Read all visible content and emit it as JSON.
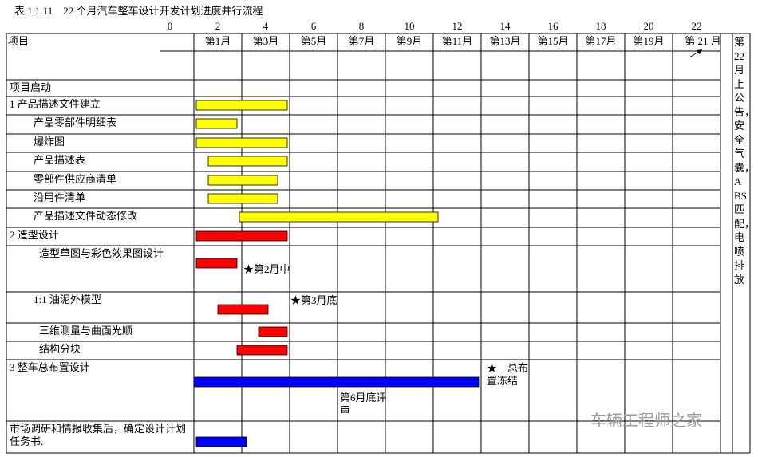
{
  "chart_data": {
    "type": "gantt",
    "title": "表 1.1.11　22 个月汽车整车设计开发计划进度并行流程",
    "header_label": "项目",
    "xlim": [
      0,
      22
    ],
    "xticks": [
      0,
      2,
      4,
      6,
      8,
      10,
      12,
      14,
      16,
      18,
      20,
      22
    ],
    "column_headers": [
      "第1月",
      "第3月",
      "第5月",
      "第7月",
      "第9月",
      "第11月",
      "第13月",
      "第15月",
      "第17月",
      "第19月",
      "第 21 月"
    ],
    "last_column": "第22月上公告，安全气囊，ABS匹配，电喷排放",
    "tasks": [
      {
        "label": "项目启动"
      },
      {
        "label": "1  产品描述文件建立",
        "start": 0.1,
        "end": 3.9,
        "color": "#ffff00"
      },
      {
        "label": "产品零部件明细表",
        "start": 0.1,
        "end": 1.8,
        "color": "#ffff00"
      },
      {
        "label": "爆炸图",
        "start": 0.1,
        "end": 3.9,
        "color": "#ffff00"
      },
      {
        "label": "产品描述表",
        "start": 0.6,
        "end": 3.9,
        "color": "#ffff00"
      },
      {
        "label": "零部件供应商清单",
        "start": 0.6,
        "end": 3.5,
        "color": "#ffff00"
      },
      {
        "label": "沿用件清单",
        "start": 0.6,
        "end": 3.5,
        "color": "#ffff00"
      },
      {
        "label": "产品描述文件动态修改",
        "start": 1.9,
        "end": 10.2,
        "color": "#ffff00"
      },
      {
        "label": "2  造型设计",
        "start": 0.1,
        "end": 3.9,
        "color": "#ff0000"
      },
      {
        "label": "造型草图与彩色效果图设计",
        "start": 0.1,
        "end": 1.8,
        "color": "#ff0000",
        "annotations": [
          "★第2月中"
        ]
      },
      {
        "label": "1:1 油泥外模型",
        "start": 1.0,
        "end": 3.1,
        "color": "#ff0000",
        "annotations": [
          "★第3月底"
        ]
      },
      {
        "label": "三维测量与曲面光顺",
        "start": 2.7,
        "end": 3.9,
        "color": "#ff0000"
      },
      {
        "label": "结构分块",
        "start": 1.8,
        "end": 3.9,
        "color": "#ff0000"
      },
      {
        "label": "3  整车总布置设计",
        "start": 0,
        "end": 11.9,
        "color": "#0000ff",
        "annotations": [
          "第6月底评审",
          "★　总布置冻结"
        ]
      },
      {
        "label": "市场调研和情报收集后，确定设计计划任务书.",
        "start": 0.1,
        "end": 2.2,
        "color": "#0000ff"
      }
    ],
    "watermark": "车辆工程师之家"
  }
}
